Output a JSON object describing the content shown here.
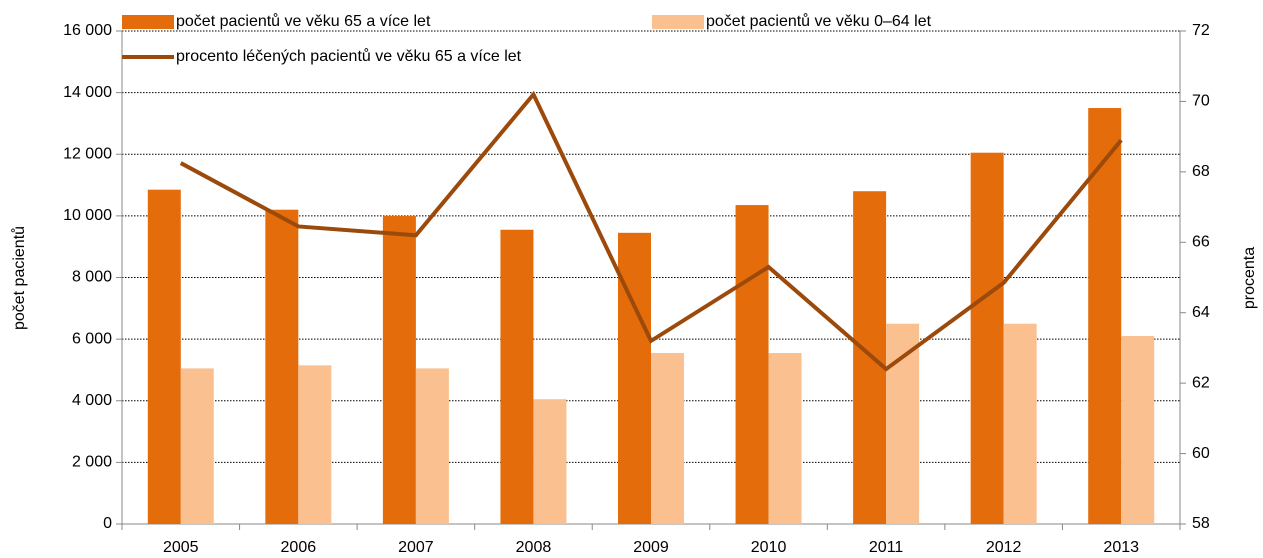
{
  "chart_data": {
    "type": "bar",
    "categories": [
      "2005",
      "2006",
      "2007",
      "2008",
      "2009",
      "2010",
      "2011",
      "2012",
      "2013"
    ],
    "series": [
      {
        "name": "počet pacientů ve věku 65 a více let",
        "type": "bar",
        "color": "#e46c0a",
        "values": [
          10850,
          10200,
          10000,
          9550,
          9450,
          10350,
          10800,
          12050,
          13500
        ]
      },
      {
        "name": "počet pacientů ve věku 0–64 let",
        "type": "bar",
        "color": "#fac090",
        "values": [
          5050,
          5150,
          5050,
          4050,
          5550,
          5550,
          6500,
          6500,
          6100
        ]
      },
      {
        "name": "procento léčených pacientů ve věku 65 a více let",
        "type": "line",
        "axis": "y2",
        "color": "#9c4a0b",
        "values": [
          68.25,
          66.45,
          66.2,
          70.2,
          63.2,
          65.3,
          62.4,
          64.85,
          68.9
        ]
      }
    ],
    "ylabel": "počet pacientů",
    "y2label": "procenta",
    "ylim": [
      0,
      16000
    ],
    "yticks": [
      0,
      {
        "value": 2000,
        "label": "2 000"
      },
      {
        "value": 4000,
        "label": "4 000"
      },
      {
        "value": 6000,
        "label": "6 000"
      },
      {
        "value": 8000,
        "label": "8 000"
      },
      {
        "value": 10000,
        "label": "10 000"
      },
      {
        "value": 12000,
        "label": "12 000"
      },
      {
        "value": 14000,
        "label": "14 000"
      },
      {
        "value": 16000,
        "label": "16 000"
      }
    ],
    "y2lim": [
      58,
      72
    ],
    "y2ticks": [
      58,
      60,
      62,
      64,
      66,
      68,
      70,
      72
    ],
    "grid": true,
    "legend": "top"
  }
}
